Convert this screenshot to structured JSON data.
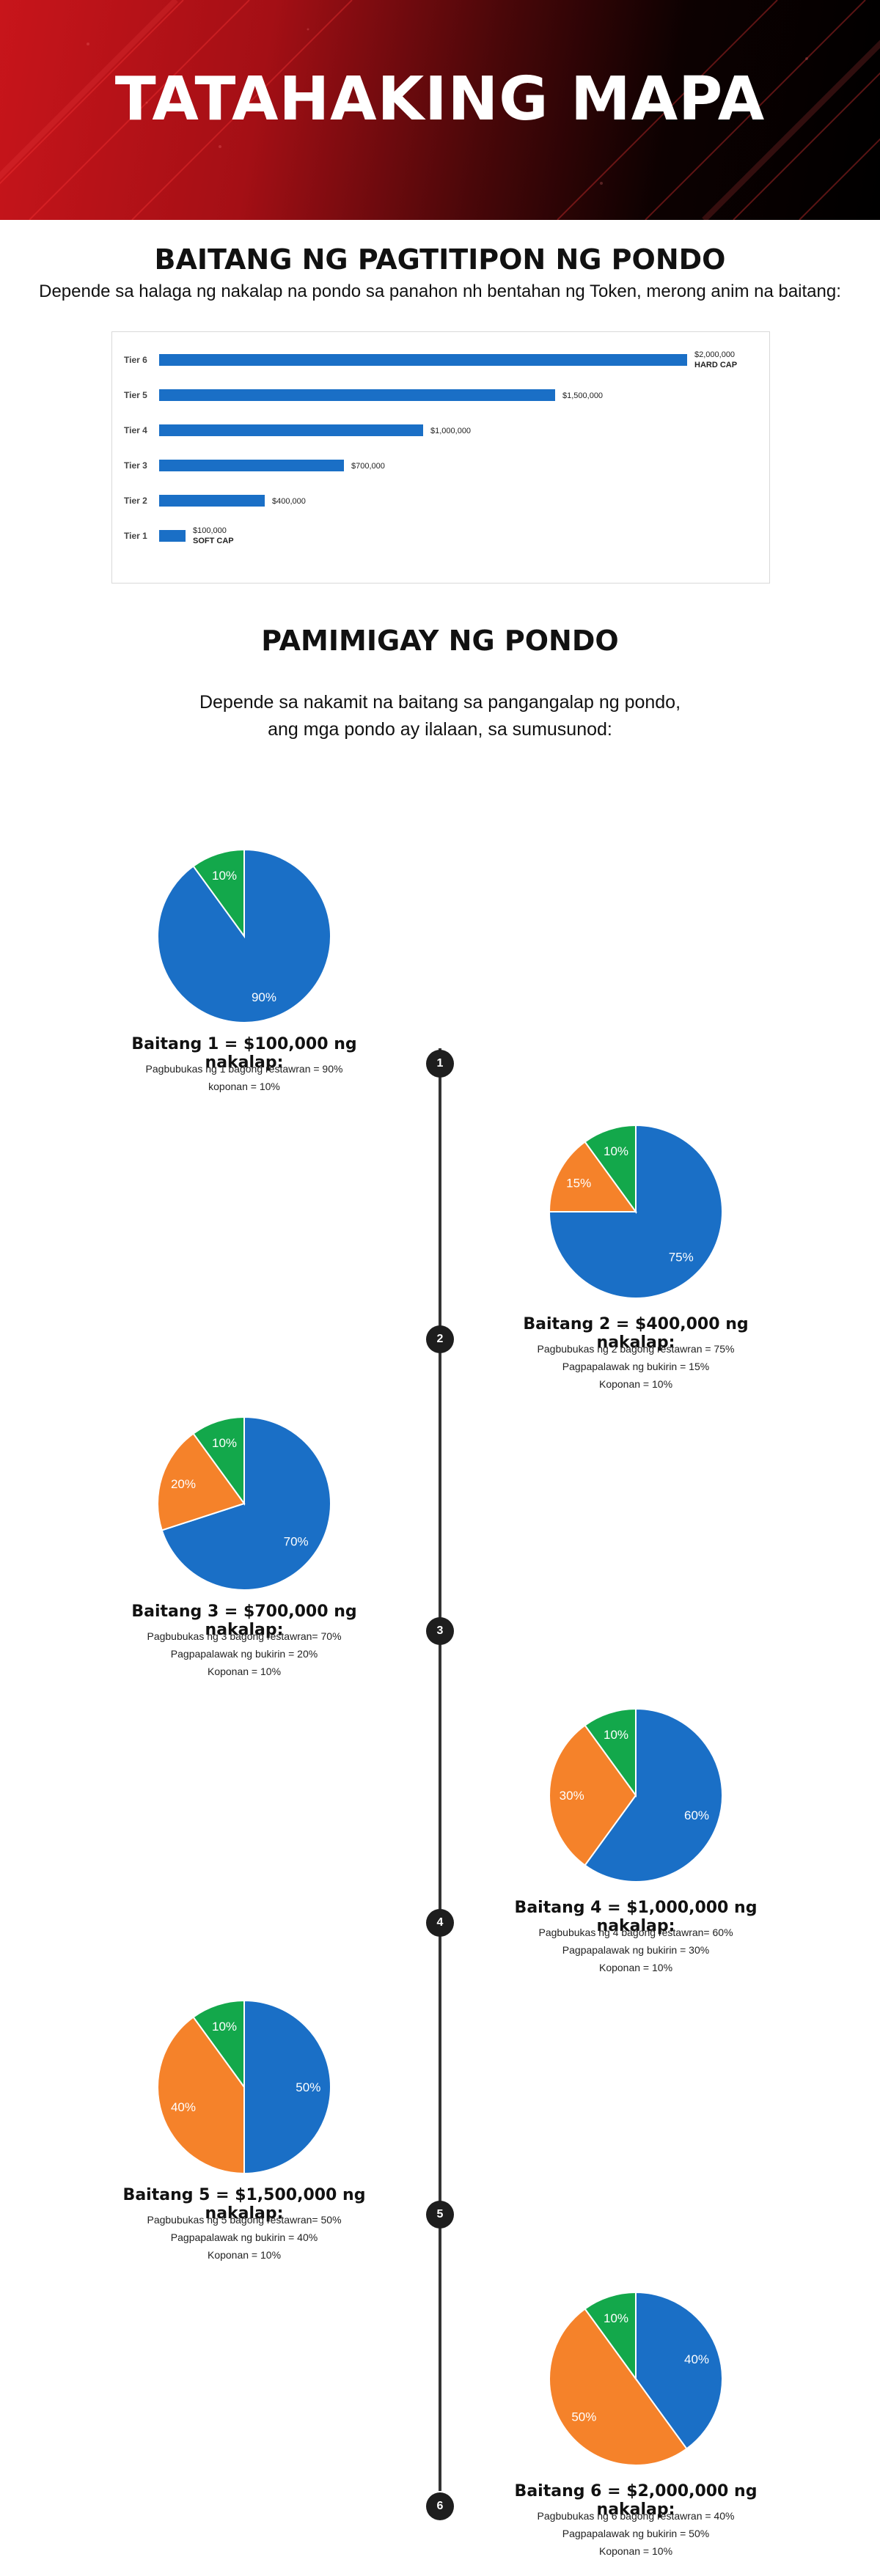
{
  "hero": {
    "title": "TATAHAKING MAPA"
  },
  "fundraising": {
    "title": "BAITANG NG PAGTITIPON NG PONDO",
    "subtitle": "Depende sa halaga ng nakalap na pondo sa panahon nh bentahan ng Token, merong anim na baitang:"
  },
  "chart_data": [
    {
      "type": "bar",
      "orientation": "horizontal",
      "categories": [
        "Tier 6",
        "Tier 5",
        "Tier 4",
        "Tier 3",
        "Tier 2",
        "Tier 1"
      ],
      "values": [
        2000000,
        1500000,
        1000000,
        700000,
        400000,
        100000
      ],
      "value_labels": [
        "$2,000,000",
        "$1,500,000",
        "$1,000,000",
        "$700,000",
        "$400,000",
        "$100,000"
      ],
      "annotations": {
        "Tier 6": "HARD CAP",
        "Tier 1": "SOFT CAP"
      },
      "color": "#1a6fc6",
      "grid": false
    },
    {
      "type": "pie",
      "tier": 1,
      "labels": [
        "Pagbubukas ng 1 bagong restawran",
        "koponan"
      ],
      "values": [
        90,
        10
      ],
      "colors": [
        "#1a6fc6",
        "#13a84b"
      ]
    },
    {
      "type": "pie",
      "tier": 2,
      "labels": [
        "Pagbubukas ng 2 bagong restawran",
        "Pagpapalawak ng bukirin",
        "Koponan"
      ],
      "values": [
        75,
        15,
        10
      ],
      "colors": [
        "#1a6fc6",
        "#f5822a",
        "#13a84b"
      ]
    },
    {
      "type": "pie",
      "tier": 3,
      "labels": [
        "Pagbubukas ng 3 bagong restawran",
        "Pagpapalawak ng bukirin",
        "Koponan"
      ],
      "values": [
        70,
        20,
        10
      ],
      "colors": [
        "#1a6fc6",
        "#f5822a",
        "#13a84b"
      ]
    },
    {
      "type": "pie",
      "tier": 4,
      "labels": [
        "Pagbubukas ng 4 bagong restawran",
        "Pagpapalawak ng bukirin",
        "Koponan"
      ],
      "values": [
        60,
        30,
        10
      ],
      "colors": [
        "#1a6fc6",
        "#f5822a",
        "#13a84b"
      ]
    },
    {
      "type": "pie",
      "tier": 5,
      "labels": [
        "Pagbubukas ng 5 bagong restawran",
        "Pagpapalawak ng bukirin",
        "Koponan"
      ],
      "values": [
        50,
        40,
        10
      ],
      "colors": [
        "#1a6fc6",
        "#f5822a",
        "#13a84b"
      ]
    },
    {
      "type": "pie",
      "tier": 6,
      "labels": [
        "Pagbubukas ng 6 bagong restawran",
        "Pagpapalawak ng bukirin",
        "Koponan"
      ],
      "values": [
        40,
        50,
        10
      ],
      "colors": [
        "#1a6fc6",
        "#f5822a",
        "#13a84b"
      ]
    }
  ],
  "distribution": {
    "title": "PAMIMIGAY NG PONDO",
    "subtitle_line1": "Depende sa nakamit na baitang sa pangangalap ng pondo,",
    "subtitle_line2": "ang mga pondo ay ilalaan, sa sumusunod:",
    "tiers": [
      {
        "number": "1",
        "side": "left",
        "title": "Baitang 1 = $100,000 ng nakalap:",
        "lines": [
          "Pagbubukas ng 1 bagong restawran = 90%",
          "koponan = 10%"
        ]
      },
      {
        "number": "2",
        "side": "right",
        "title": "Baitang 2 = $400,000 ng nakalap:",
        "lines": [
          "Pagbubukas ng 2 bagong restawran = 75%",
          "Pagpapalawak ng bukirin = 15%",
          "Koponan = 10%"
        ]
      },
      {
        "number": "3",
        "side": "left",
        "title": "Baitang 3 = $700,000 ng nakalap:",
        "lines": [
          "Pagbubukas ng 3 bagong restawran= 70%",
          "Pagpapalawak ng bukirin = 20%",
          "Koponan = 10%"
        ]
      },
      {
        "number": "4",
        "side": "right",
        "title": "Baitang 4 = $1,000,000 ng nakalap:",
        "lines": [
          "Pagbubukas ng 4 bagong restawran= 60%",
          "Pagpapalawak ng bukirin = 30%",
          "Koponan = 10%"
        ]
      },
      {
        "number": "5",
        "side": "left",
        "title": "Baitang 5 = $1,500,000 ng nakalap:",
        "lines": [
          "Pagbubukas ng 5 bagong restawran= 50%",
          "Pagpapalawak ng bukirin = 40%",
          "Koponan = 10%"
        ]
      },
      {
        "number": "6",
        "side": "right",
        "title": "Baitang 6 = $2,000,000 ng nakalap:",
        "lines": [
          "Pagbubukas ng 6 bagong restawran = 40%",
          "Pagpapalawak ng bukirin = 50%",
          "Koponan = 10%"
        ]
      }
    ]
  }
}
